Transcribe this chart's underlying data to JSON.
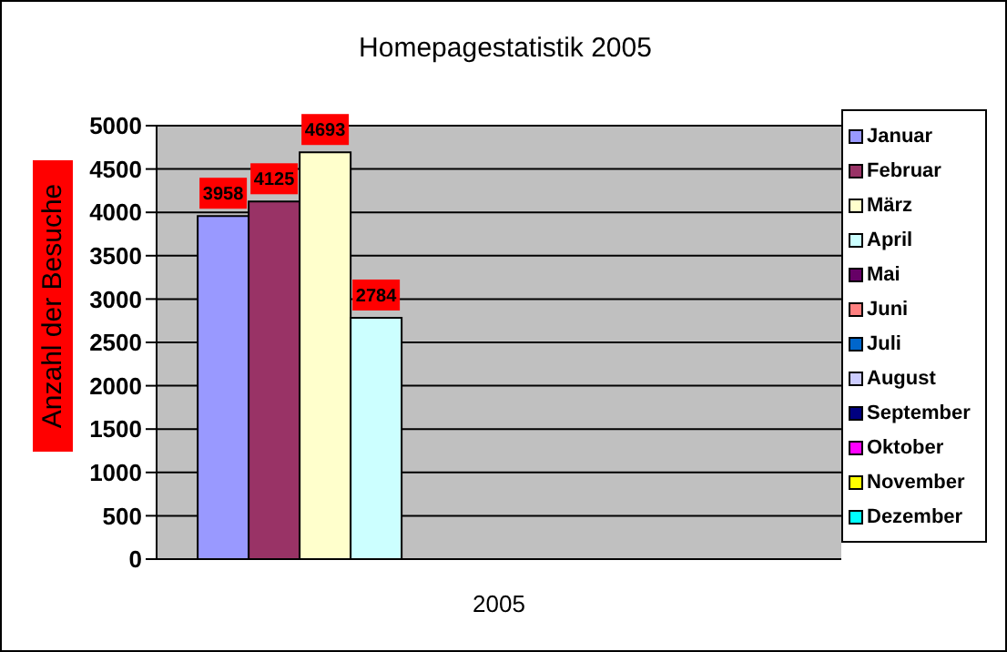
{
  "chart_data": {
    "type": "bar",
    "title": "Homepagestatistik 2005",
    "ylabel": "Anzahl der Besuche",
    "categories": [
      "2005"
    ],
    "series": [
      {
        "name": "Januar",
        "color": "#9999ff",
        "values": [
          3958
        ]
      },
      {
        "name": "Februar",
        "color": "#993366",
        "values": [
          4125
        ]
      },
      {
        "name": "März",
        "color": "#ffffcc",
        "values": [
          4693
        ]
      },
      {
        "name": "April",
        "color": "#ccffff",
        "values": [
          2784
        ]
      },
      {
        "name": "Mai",
        "color": "#660066",
        "values": [
          null
        ]
      },
      {
        "name": "Juni",
        "color": "#ff8080",
        "values": [
          null
        ]
      },
      {
        "name": "Juli",
        "color": "#0066cc",
        "values": [
          null
        ]
      },
      {
        "name": "August",
        "color": "#ccccff",
        "values": [
          null
        ]
      },
      {
        "name": "September",
        "color": "#000080",
        "values": [
          null
        ]
      },
      {
        "name": "Oktober",
        "color": "#ff00ff",
        "values": [
          null
        ]
      },
      {
        "name": "November",
        "color": "#ffff00",
        "values": [
          null
        ]
      },
      {
        "name": "Dezember",
        "color": "#00ffff",
        "values": [
          null
        ]
      }
    ],
    "ylim": [
      0,
      5000
    ],
    "yticks": [
      0,
      500,
      1000,
      1500,
      2000,
      2500,
      3000,
      3500,
      4000,
      4500,
      5000
    ],
    "grid": "y",
    "legend": "right",
    "data_labels": true
  }
}
